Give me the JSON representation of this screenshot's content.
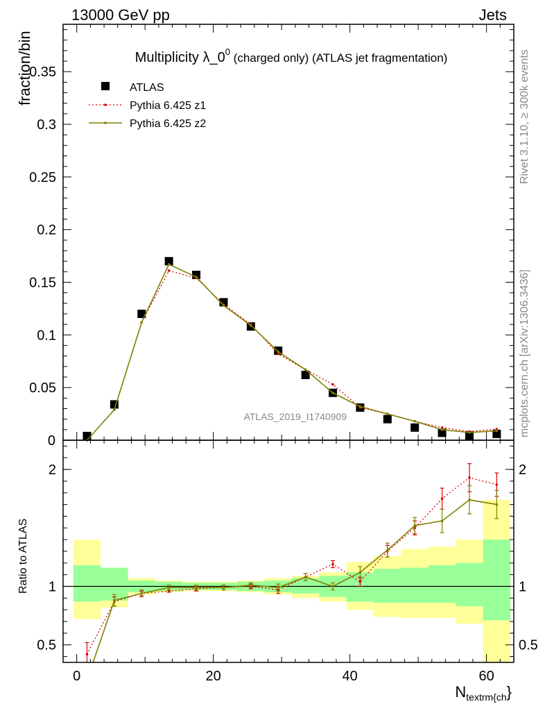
{
  "header": {
    "left": "13000 GeV pp",
    "right": "Jets"
  },
  "side_labels": {
    "rivet": "Rivet 3.1.10, ≥ 300k events",
    "mcplots": "mcplots.cern.ch [arXiv:1306.3436]"
  },
  "colors": {
    "atlas": "#000000",
    "z1": "#dd0000",
    "z2": "#808000",
    "band_inner": "#99ff99",
    "band_outer": "#ffff99"
  },
  "chart_data": [
    {
      "type": "scatter",
      "title": "Multiplicity λ_0⁰ (charged only) (ATLAS jet fragmentation)",
      "title_main": "Multiplicity λ_0",
      "title_sup": "0",
      "title_rest": " (charged only) (ATLAS jet fragmentation)",
      "ylabel": "fraction/bin",
      "watermark": "ATLAS_2019_I1740909",
      "xlim": [
        -2,
        64
      ],
      "ylim": [
        0,
        0.395
      ],
      "yticks": [
        0.05,
        0.1,
        0.15,
        0.2,
        0.25,
        0.3,
        0.35
      ],
      "ytick_labels": [
        "0.05",
        "0.1",
        "0.15",
        "0.2",
        "0.25",
        "0.3",
        "0.35"
      ],
      "y_zero_label": "0",
      "x": [
        1.5,
        5.5,
        9.5,
        13.5,
        17.5,
        21.5,
        25.5,
        29.5,
        33.5,
        37.5,
        41.5,
        45.5,
        49.5,
        53.5,
        57.5,
        61.5
      ],
      "series": [
        {
          "name": "ATLAS",
          "style": "markers",
          "values": [
            0.004,
            0.034,
            0.12,
            0.17,
            0.157,
            0.131,
            0.108,
            0.085,
            0.062,
            0.045,
            0.031,
            0.02,
            0.012,
            0.007,
            0.0045,
            0.006
          ]
        },
        {
          "name": "Pythia 6.425 z1",
          "style": "dotted",
          "values": [
            0.0,
            0.029,
            0.112,
            0.161,
            0.154,
            0.129,
            0.11,
            0.082,
            0.067,
            0.053,
            0.031,
            0.025,
            0.018,
            0.012,
            0.0083,
            0.0105
          ]
        },
        {
          "name": "Pythia 6.425 z2",
          "style": "solid",
          "values": [
            0.0,
            0.029,
            0.112,
            0.167,
            0.155,
            0.128,
            0.109,
            0.084,
            0.067,
            0.045,
            0.032,
            0.025,
            0.018,
            0.01,
            0.0073,
            0.009
          ]
        }
      ]
    },
    {
      "type": "line",
      "ylabel": "Ratio to ATLAS",
      "xlabel": "N_textrm{ch}",
      "xlabel_main": "N",
      "xlabel_sub": "textrm{ch",
      "xlabel_close": "}",
      "ylim": [
        0.35,
        2.25
      ],
      "yticks": [
        0.5,
        1,
        2
      ],
      "ytick_labels": [
        "0.5",
        "1",
        "2"
      ],
      "xticks": [
        0,
        20,
        40,
        60
      ],
      "xtick_labels": [
        "0",
        "20",
        "40",
        "60"
      ],
      "x": [
        1.5,
        5.5,
        9.5,
        13.5,
        17.5,
        21.5,
        25.5,
        29.5,
        33.5,
        37.5,
        41.5,
        45.5,
        49.5,
        53.5,
        57.5,
        61.5
      ],
      "band_inner": [
        [
          0.87,
          1.18
        ],
        [
          0.88,
          1.16
        ],
        [
          0.95,
          1.05
        ],
        [
          0.96,
          1.04
        ],
        [
          0.97,
          1.03
        ],
        [
          0.97,
          1.03
        ],
        [
          0.96,
          1.04
        ],
        [
          0.95,
          1.05
        ],
        [
          0.94,
          1.07
        ],
        [
          0.91,
          1.09
        ],
        [
          0.87,
          1.12
        ],
        [
          0.86,
          1.15
        ],
        [
          0.86,
          1.16
        ],
        [
          0.86,
          1.18
        ],
        [
          0.83,
          1.2
        ],
        [
          0.71,
          1.4
        ]
      ],
      "band_outer": [
        [
          0.72,
          1.4
        ],
        [
          0.82,
          1.16
        ],
        [
          0.93,
          1.07
        ],
        [
          0.95,
          1.05
        ],
        [
          0.96,
          1.04
        ],
        [
          0.96,
          1.04
        ],
        [
          0.95,
          1.05
        ],
        [
          0.93,
          1.07
        ],
        [
          0.9,
          1.09
        ],
        [
          0.87,
          1.12
        ],
        [
          0.8,
          1.21
        ],
        [
          0.74,
          1.26
        ],
        [
          0.73,
          1.32
        ],
        [
          0.73,
          1.34
        ],
        [
          0.68,
          1.4
        ],
        [
          0.35,
          1.74
        ]
      ],
      "series": [
        {
          "name": "Pythia 6.425 z1",
          "style": "dotted",
          "values": [
            0.42,
            0.87,
            0.94,
            0.96,
            0.98,
            0.99,
            1.0,
            0.97,
            1.08,
            1.19,
            1.04,
            1.3,
            1.5,
            1.75,
            1.93,
            1.87
          ],
          "errors": [
            0.1,
            0.04,
            0.02,
            0.01,
            0.02,
            0.02,
            0.02,
            0.03,
            0.03,
            0.03,
            0.04,
            0.05,
            0.06,
            0.09,
            0.12,
            0.1
          ]
        },
        {
          "name": "Pythia 6.425 z2",
          "style": "solid",
          "values": [
            0.2,
            0.88,
            0.94,
            0.99,
            0.99,
            0.99,
            1.01,
            0.99,
            1.08,
            1.0,
            1.12,
            1.31,
            1.52,
            1.56,
            1.74,
            1.7
          ],
          "errors": [
            0.1,
            0.05,
            0.03,
            0.02,
            0.02,
            0.02,
            0.02,
            0.03,
            0.03,
            0.03,
            0.05,
            0.06,
            0.07,
            0.1,
            0.12,
            0.12
          ]
        }
      ]
    }
  ]
}
